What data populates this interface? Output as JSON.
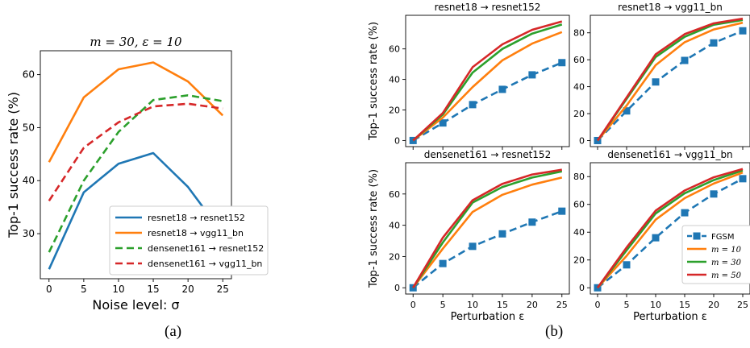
{
  "figure": {
    "caption_a": "(a)",
    "caption_b": "(b)"
  },
  "colors": {
    "blue": "#1f77b4",
    "orange": "#ff7f0e",
    "green": "#2ca02c",
    "red": "#d62728"
  },
  "chart_data": [
    {
      "type": "line",
      "panel": "a",
      "title": "m = 30, ε = 10",
      "xlabel": "Noise level: σ",
      "ylabel": "Top-1 success rate (%)",
      "x": [
        0,
        5,
        10,
        15,
        20,
        25
      ],
      "xticks": [
        "0",
        "5",
        "10",
        "15",
        "20",
        "25"
      ],
      "yticks": [
        30,
        40,
        50,
        60
      ],
      "xlim": [
        -1.25,
        26.25
      ],
      "ylim": [
        21.5,
        64.5
      ],
      "grid": false,
      "legend": "lower-center",
      "series": [
        {
          "name": "resnet18 → resnet152",
          "style": "solid",
          "color": "#1f77b4",
          "values": [
            23.3,
            37.8,
            43.2,
            45.2,
            38.8,
            30.0
          ]
        },
        {
          "name": "resnet18 → vgg11_bn",
          "style": "solid",
          "color": "#ff7f0e",
          "values": [
            43.5,
            55.7,
            61.0,
            62.3,
            58.7,
            52.3
          ]
        },
        {
          "name": "densenet161 → resnet152",
          "style": "dashed",
          "color": "#2ca02c",
          "values": [
            26.5,
            40.0,
            49.2,
            55.2,
            56.1,
            55.0
          ]
        },
        {
          "name": "densenet161 → vgg11_bn",
          "style": "dashed",
          "color": "#d62728",
          "values": [
            36.2,
            46.2,
            51.0,
            54.0,
            54.5,
            53.6
          ]
        }
      ]
    },
    {
      "type": "line",
      "panel": "b1",
      "title": "resnet18 → resnet152",
      "xlabel": "",
      "ylabel": "Top-1 success rate (%)",
      "x": [
        0,
        5,
        10,
        15,
        20,
        25
      ],
      "xticks": [],
      "yticks": [
        0,
        20,
        40,
        60
      ],
      "ylim": [
        -4,
        82
      ],
      "series": [
        {
          "name": "FGSM",
          "style": "dashed-square",
          "color": "#1f77b4",
          "values": [
            0,
            11.5,
            23.5,
            33.5,
            43,
            51
          ]
        },
        {
          "name": "m = 10",
          "style": "solid",
          "color": "#ff7f0e",
          "values": [
            0,
            15,
            35,
            52.5,
            63.5,
            71
          ]
        },
        {
          "name": "m = 30",
          "style": "solid",
          "color": "#2ca02c",
          "values": [
            0,
            17,
            44.5,
            60,
            70,
            76
          ]
        },
        {
          "name": "m = 50",
          "style": "solid",
          "color": "#d62728",
          "values": [
            0,
            18,
            48,
            63,
            72.5,
            78
          ]
        }
      ]
    },
    {
      "type": "line",
      "panel": "b2",
      "title": "resnet18 → vgg11_bn",
      "xlabel": "",
      "ylabel": "",
      "x": [
        0,
        5,
        10,
        15,
        20,
        25
      ],
      "xticks": [],
      "yticks": [
        0,
        20,
        40,
        60,
        80
      ],
      "ylim": [
        -4.5,
        93
      ],
      "series": [
        {
          "name": "FGSM",
          "style": "dashed-square",
          "color": "#1f77b4",
          "values": [
            0,
            22,
            43.5,
            59.5,
            72.5,
            81.5
          ]
        },
        {
          "name": "m = 10",
          "style": "solid",
          "color": "#ff7f0e",
          "values": [
            0,
            26,
            56,
            73,
            82.5,
            87.5
          ]
        },
        {
          "name": "m = 30",
          "style": "solid",
          "color": "#2ca02c",
          "values": [
            0,
            31,
            62,
            77,
            86,
            89.5
          ]
        },
        {
          "name": "m = 50",
          "style": "solid",
          "color": "#d62728",
          "values": [
            0,
            32,
            64,
            79,
            87,
            90.5
          ]
        }
      ]
    },
    {
      "type": "line",
      "panel": "b3",
      "title": "densenet161 → resnet152",
      "xlabel": "Perturbation ε",
      "ylabel": "Top-1 success rate (%)",
      "x": [
        0,
        5,
        10,
        15,
        20,
        25
      ],
      "xticks": [
        "0",
        "5",
        "10",
        "15",
        "20",
        "25"
      ],
      "yticks": [
        0,
        20,
        40,
        60
      ],
      "ylim": [
        -4,
        80
      ],
      "series": [
        {
          "name": "FGSM",
          "style": "dashed-square",
          "color": "#1f77b4",
          "values": [
            0,
            15.5,
            26.5,
            34.5,
            42,
            49
          ]
        },
        {
          "name": "m = 10",
          "style": "solid",
          "color": "#ff7f0e",
          "values": [
            0,
            25,
            48.5,
            59.5,
            66,
            70.5
          ]
        },
        {
          "name": "m = 30",
          "style": "solid",
          "color": "#2ca02c",
          "values": [
            0,
            29,
            54.5,
            64.5,
            70.5,
            74.5
          ]
        },
        {
          "name": "m = 50",
          "style": "solid",
          "color": "#d62728",
          "values": [
            0,
            32,
            56,
            66.5,
            72.5,
            75.5
          ]
        }
      ]
    },
    {
      "type": "line",
      "panel": "b4",
      "title": "densenet161 → vgg11_bn",
      "xlabel": "Perturbation ε",
      "ylabel": "",
      "x": [
        0,
        5,
        10,
        15,
        20,
        25
      ],
      "xticks": [
        "0",
        "5",
        "10",
        "15",
        "20",
        "25"
      ],
      "yticks": [
        0,
        20,
        40,
        60,
        80
      ],
      "ylim": [
        -4.5,
        90
      ],
      "legend": "lower-right",
      "series": [
        {
          "name": "FGSM",
          "style": "dashed-square",
          "color": "#1f77b4",
          "values": [
            0,
            16.5,
            36,
            54,
            67.5,
            78.5
          ]
        },
        {
          "name": "m = 10",
          "style": "solid",
          "color": "#ff7f0e",
          "values": [
            0,
            23,
            49,
            64.5,
            75,
            83
          ]
        },
        {
          "name": "m = 30",
          "style": "solid",
          "color": "#2ca02c",
          "values": [
            0,
            27,
            53.5,
            68,
            77.5,
            84.5
          ]
        },
        {
          "name": "m = 50",
          "style": "solid",
          "color": "#d62728",
          "values": [
            0,
            29,
            55.5,
            70,
            79.5,
            85.5
          ]
        }
      ]
    }
  ]
}
